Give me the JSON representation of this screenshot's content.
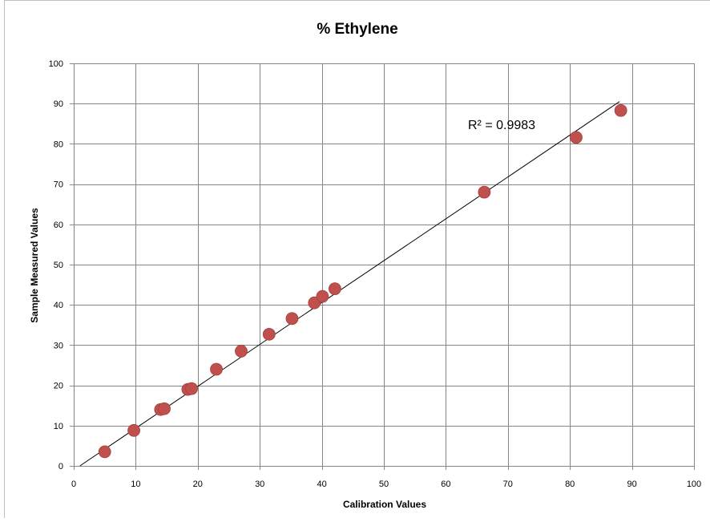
{
  "chart_data": {
    "type": "scatter",
    "title": "% Ethylene",
    "xlabel": "Calibration Values",
    "ylabel": "Sample Measured Values",
    "xlim": [
      0,
      100
    ],
    "ylim": [
      0,
      100
    ],
    "x_ticks": [
      "0",
      "10",
      "20",
      "30",
      "40",
      "50",
      "60",
      "70",
      "80",
      "90",
      "100"
    ],
    "y_ticks": [
      "0",
      "10",
      "20",
      "30",
      "40",
      "50",
      "60",
      "70",
      "80",
      "90",
      "100"
    ],
    "grid": true,
    "legend": "none",
    "marker_color": "#c0504d",
    "trendline": {
      "type": "linear",
      "x": [
        1,
        88
      ],
      "y": [
        0,
        90.5
      ],
      "color": "#000000",
      "r_squared_label": "R² = 0.9983"
    },
    "series": [
      {
        "x": [
          5,
          9.7,
          14,
          14.6,
          18.4,
          19,
          23,
          27,
          31.5,
          35.2,
          38.8,
          40.1,
          42.1,
          66.2,
          81,
          88.2
        ],
        "y": [
          3.5,
          8.8,
          14,
          14.2,
          19,
          19.2,
          24,
          28.5,
          32.7,
          36.6,
          40.5,
          42.1,
          44,
          68,
          81.6,
          88.3
        ]
      }
    ]
  }
}
